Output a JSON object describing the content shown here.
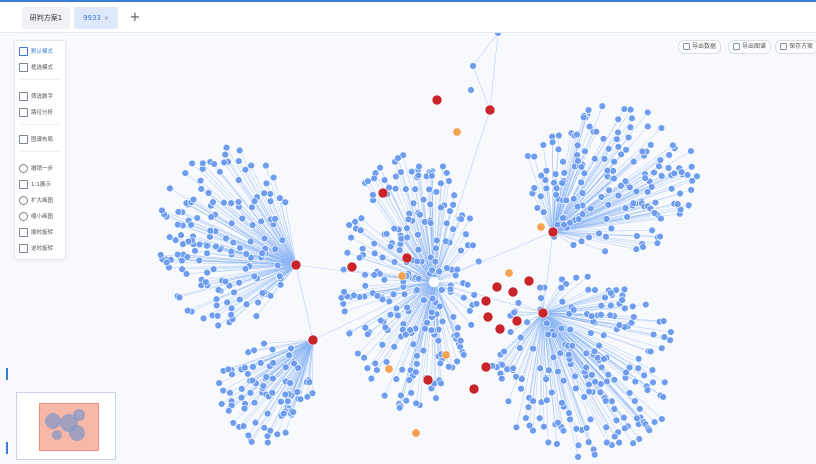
{
  "tabs": [
    {
      "label": "研判方案1"
    },
    {
      "label": "9933",
      "close": "×"
    }
  ],
  "add_tab_label": "+",
  "toolbar": {
    "items": [
      {
        "label": "默认模式",
        "icon": "pointer-icon",
        "active": true
      },
      {
        "label": "框选模式",
        "icon": "marquee-select-icon"
      },
      {
        "label": "筛选数字",
        "icon": "filter-number-icon"
      },
      {
        "label": "路径分析",
        "icon": "path-analysis-icon"
      },
      {
        "label": "图谱布局",
        "icon": "layout-icon"
      },
      {
        "label": "撤销一步",
        "icon": "undo-icon"
      },
      {
        "label": "1:1展示",
        "icon": "actual-size-icon"
      },
      {
        "label": "扩大画图",
        "icon": "zoom-in-icon"
      },
      {
        "label": "缩小画图",
        "icon": "zoom-out-icon"
      },
      {
        "label": "顺时旋转",
        "icon": "rotate-clockwise-icon"
      },
      {
        "label": "逆时旋转",
        "icon": "rotate-counterclockwise-icon"
      }
    ]
  },
  "actions": {
    "export_data": "导出数据",
    "export_image": "导出图谱",
    "save_plan": "保存方案"
  },
  "colors": {
    "accent": "#3a7bd5",
    "node_blue": "#6e9df0",
    "node_red": "#c8242a",
    "node_orange": "#f3a24f",
    "edge": "#8ab4f4",
    "minimap_view": "#f7b8a9"
  }
}
